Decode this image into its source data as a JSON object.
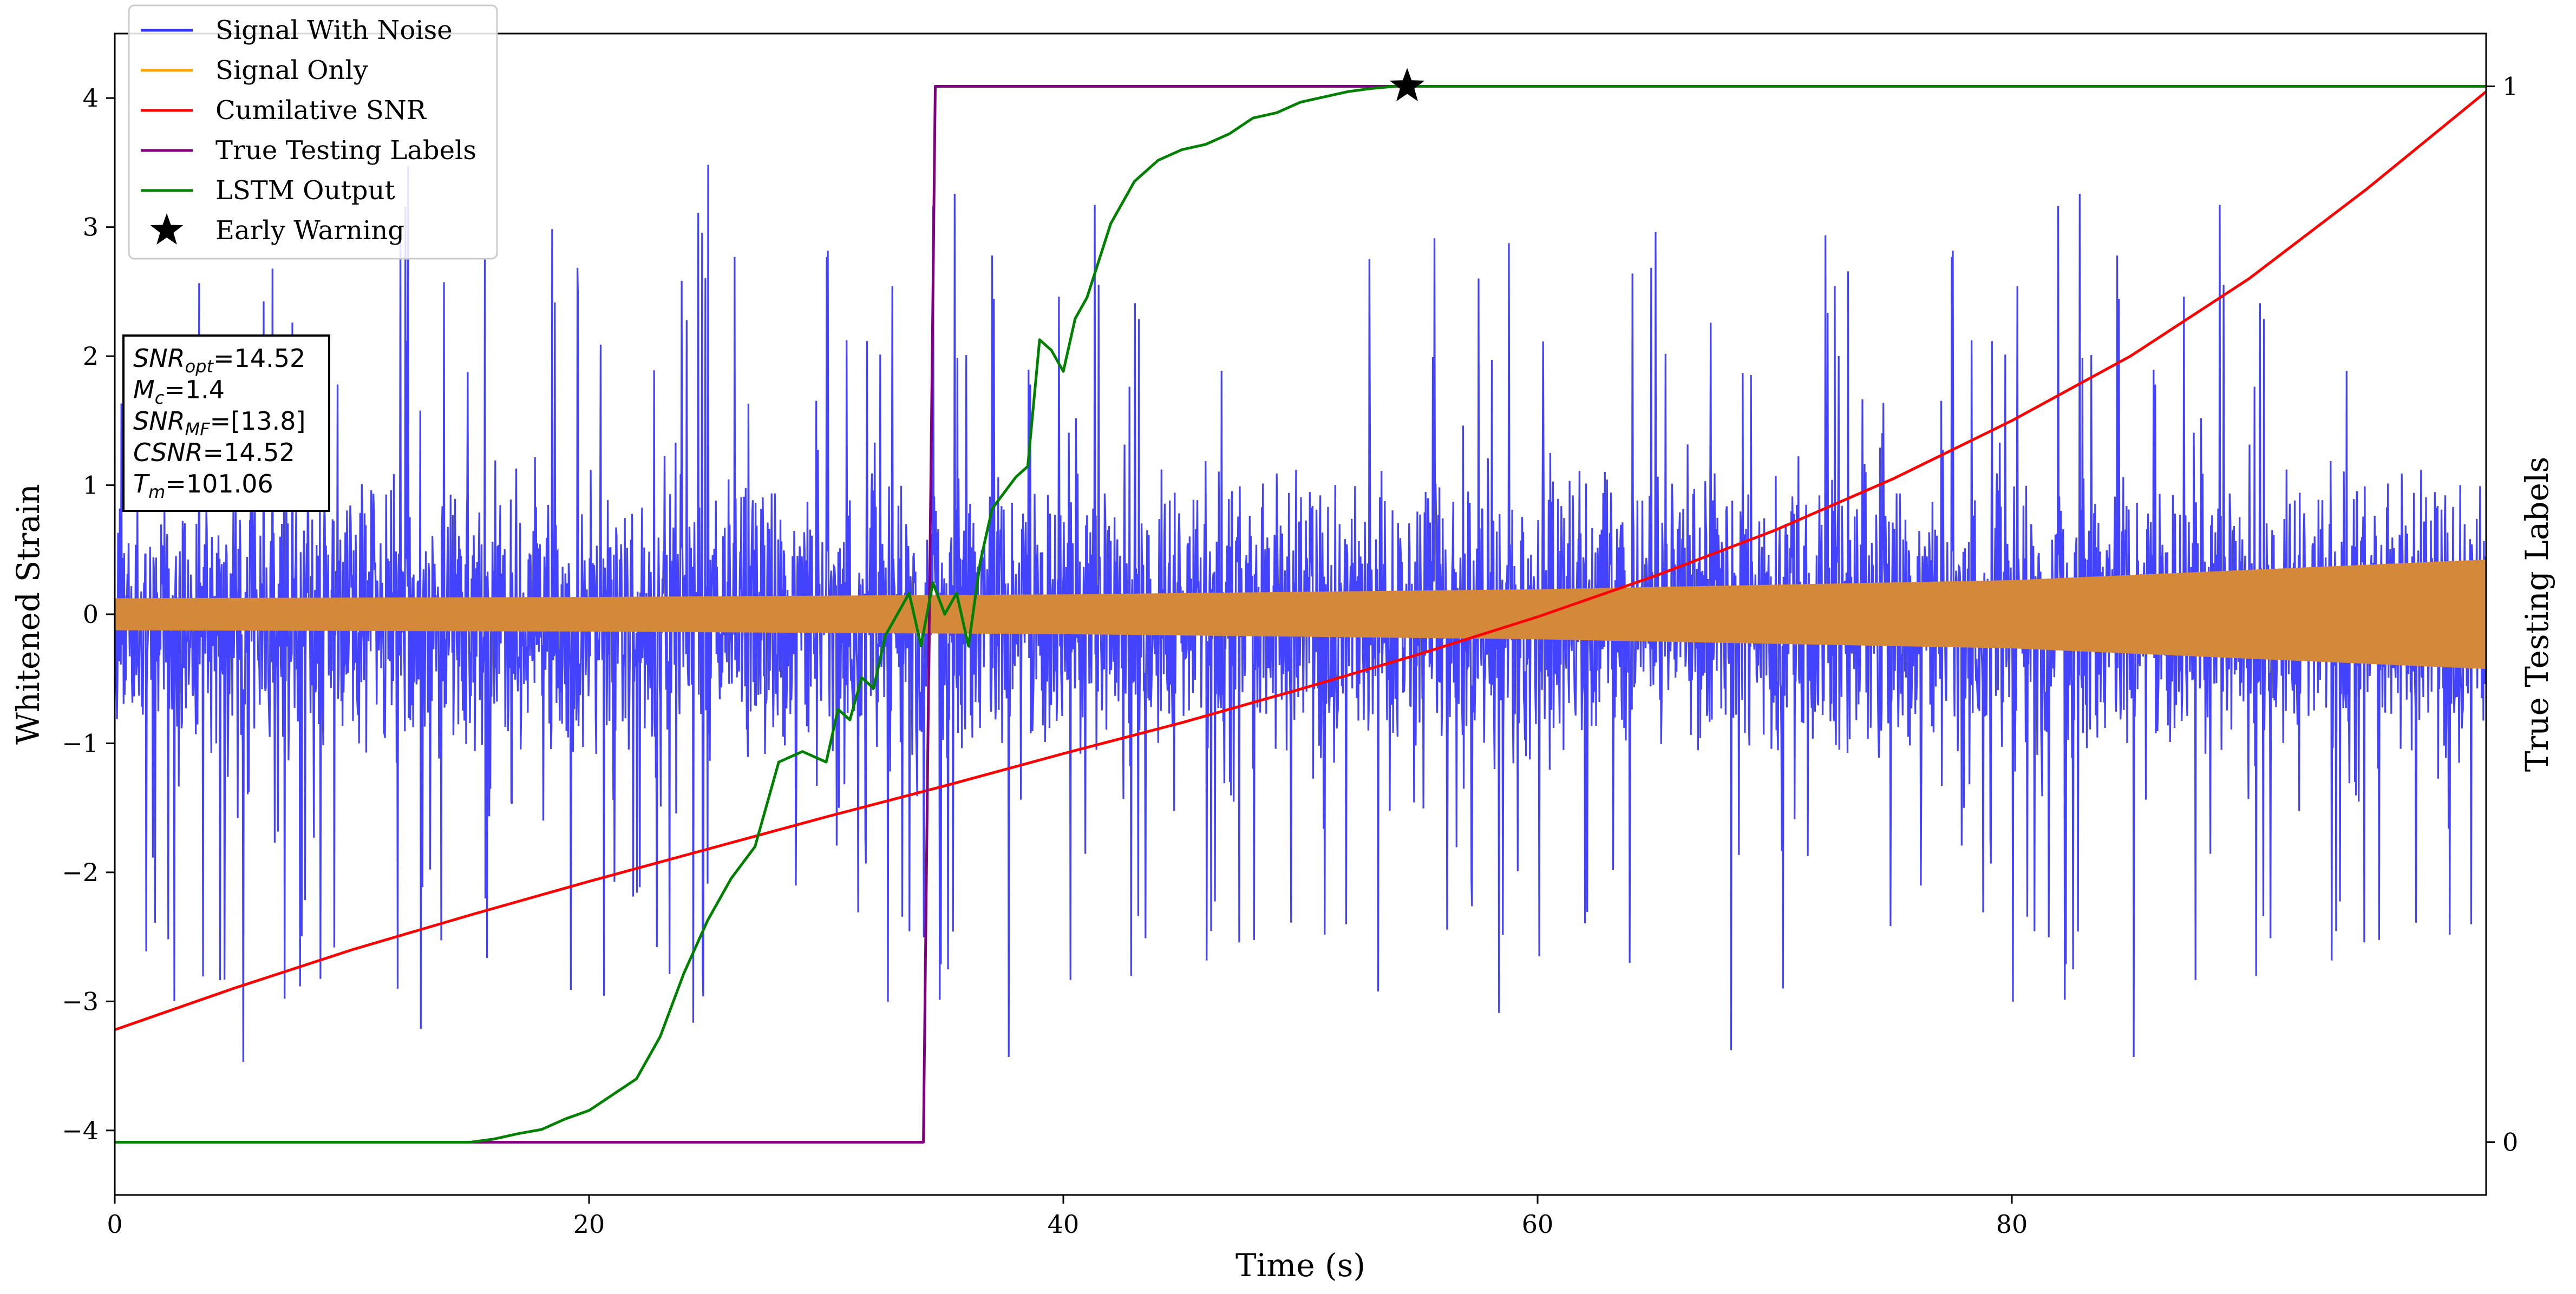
{
  "chart_data": {
    "type": "line",
    "xlabel": "Time (s)",
    "ylabel": "Whitened Strain",
    "ylabel_right": "True Testing Labels",
    "xlim": [
      0,
      100
    ],
    "ylim": [
      -4.5,
      4.5
    ],
    "ylim_right": [
      -0.05,
      1.05
    ],
    "x_ticks": [
      0,
      20,
      40,
      60,
      80
    ],
    "x_tick_labels": [
      "0",
      "20",
      "40",
      "60",
      "80"
    ],
    "y_ticks": [
      -4,
      -3,
      -2,
      -1,
      0,
      1,
      2,
      3,
      4
    ],
    "y_tick_labels": [
      "−4",
      "−3",
      "−2",
      "−1",
      "0",
      "1",
      "2",
      "3",
      "4"
    ],
    "y_right_ticks": [
      0,
      1
    ],
    "y_right_tick_labels": [
      "0",
      "1"
    ],
    "grid": false,
    "legend_position": "top-left",
    "legend": [
      {
        "label": "Signal With Noise",
        "color": "#3333ff",
        "marker": "line"
      },
      {
        "label": "Signal Only",
        "color": "#ffa500",
        "marker": "line"
      },
      {
        "label": "Cumilative SNR",
        "color": "#ff0000",
        "marker": "line"
      },
      {
        "label": "True Testing Labels",
        "color": "#800080",
        "marker": "line"
      },
      {
        "label": "LSTM Output",
        "color": "#008000",
        "marker": "line"
      },
      {
        "label": "Early Warning",
        "color": "#000000",
        "marker": "star"
      }
    ],
    "info_box": {
      "lines": [
        {
          "main": "SNR",
          "sub": "opt",
          "rest": "=14.52"
        },
        {
          "main": "M",
          "sub": "c",
          "rest": "=1.4"
        },
        {
          "main": "SNR",
          "sub": "MF",
          "rest": "=[13.8]"
        },
        {
          "main": "CSNR",
          "sub": "",
          "rest": "=14.52"
        },
        {
          "main": "T",
          "sub": "m",
          "rest": "=101.06"
        }
      ]
    },
    "series": [
      {
        "name": "Signal With Noise",
        "axis": "left",
        "color": "#3333ff",
        "kind": "noise",
        "core_amplitude": 0.95,
        "spike_max": 3.5,
        "x": [
          0,
          100
        ]
      },
      {
        "name": "Signal Only",
        "axis": "left",
        "color": "#d4883a",
        "kind": "envelope",
        "x": [
          0,
          20,
          40,
          60,
          80,
          100
        ],
        "upper": [
          0.12,
          0.13,
          0.15,
          0.19,
          0.26,
          0.42
        ],
        "lower": [
          -0.12,
          -0.13,
          -0.15,
          -0.19,
          -0.26,
          -0.42
        ]
      },
      {
        "name": "Cumilative SNR",
        "axis": "left",
        "color": "#ff0000",
        "kind": "line",
        "x": [
          0,
          5,
          10,
          15,
          20,
          25,
          30,
          35,
          40,
          45,
          50,
          55,
          60,
          65,
          70,
          75,
          80,
          85,
          90,
          95,
          100
        ],
        "y": [
          -3.22,
          -2.9,
          -2.6,
          -2.33,
          -2.07,
          -1.82,
          -1.57,
          -1.33,
          -1.08,
          -0.84,
          -0.58,
          -0.31,
          -0.02,
          0.3,
          0.65,
          1.05,
          1.5,
          2.0,
          2.6,
          3.3,
          4.05
        ]
      },
      {
        "name": "True Testing Labels",
        "axis": "right",
        "color": "#800080",
        "kind": "line",
        "x": [
          0,
          34.1,
          34.6,
          100
        ],
        "y": [
          0,
          0,
          1,
          1
        ]
      },
      {
        "name": "LSTM Output",
        "axis": "right",
        "color": "#008000",
        "kind": "line",
        "x": [
          0,
          15,
          16,
          17,
          18,
          19,
          20,
          21,
          22,
          23,
          24,
          25,
          26,
          27,
          28,
          29,
          30,
          30.5,
          31,
          31.5,
          32,
          32.5,
          33,
          33.5,
          34,
          34.5,
          35,
          35.5,
          36,
          36.5,
          37,
          38,
          38.5,
          39,
          39.5,
          40,
          40.5,
          41,
          42,
          43,
          44,
          45,
          46,
          47,
          48,
          49,
          50,
          51,
          52,
          53,
          54,
          55,
          100
        ],
        "y": [
          0,
          0,
          0.003,
          0.008,
          0.012,
          0.022,
          0.03,
          0.045,
          0.06,
          0.1,
          0.16,
          0.21,
          0.25,
          0.28,
          0.36,
          0.37,
          0.36,
          0.41,
          0.4,
          0.44,
          0.43,
          0.48,
          0.5,
          0.52,
          0.47,
          0.53,
          0.5,
          0.52,
          0.47,
          0.55,
          0.6,
          0.63,
          0.64,
          0.76,
          0.75,
          0.73,
          0.78,
          0.8,
          0.87,
          0.91,
          0.93,
          0.94,
          0.945,
          0.955,
          0.97,
          0.975,
          0.985,
          0.99,
          0.995,
          0.998,
          1.0,
          1.0,
          1.0
        ]
      }
    ],
    "early_warning": {
      "x": 54.5,
      "y": 1.0,
      "axis": "right"
    }
  }
}
